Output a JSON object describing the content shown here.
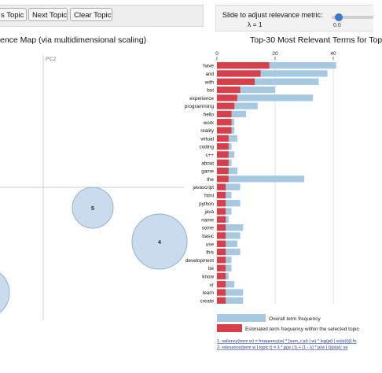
{
  "toolbar": {
    "prev_label": "s Topic",
    "next_label": "Next Topic",
    "clear_label": "Clear Topic"
  },
  "slider": {
    "title": "Slide to adjust relevance metric:",
    "lambda_label": "λ = 1",
    "tick_label": "0.0",
    "value": 1
  },
  "map": {
    "title": "ence Map (via multidimensional scaling)",
    "pc2_label": "PC2",
    "circles": [
      {
        "label": "5",
        "size": "medium"
      },
      {
        "label": "4",
        "size": "large"
      }
    ]
  },
  "bars_panel": {
    "title": "Top-30 Most Relevant Terms for Top",
    "legend_overall": "Overall term frequency",
    "legend_estimated": "Estimated term frequency within the selected topic",
    "footnote_1": "1. saliency(term w) = frequency(w) * [sum_t p(t | w) * log(p(t | w)/p(t))] fo",
    "footnote_2": "2. relevance(term w | topic t) = λ * p(w | t) + (1 - λ) * p(w | t)/p(w); se"
  },
  "colors": {
    "overall": "#a6c8e1",
    "estimated": "#d6404b",
    "circle_fill": "#c9dbed",
    "circle_stroke": "#93b2cf"
  },
  "chart_data": {
    "type": "bar",
    "orientation": "horizontal",
    "title": "Top-30 Most Relevant Terms for Top",
    "xlim": [
      0,
      45
    ],
    "x_ticks": [
      0,
      20,
      40
    ],
    "grid": true,
    "legend": "bottom",
    "categories": [
      "have",
      "and",
      "with",
      "but",
      "experience",
      "programming",
      "hello",
      "work",
      "reality",
      "virtual",
      "coding",
      "c++",
      "about",
      "game",
      "the",
      "javascript",
      "html",
      "python",
      "java",
      "name",
      "some",
      "basic",
      "use",
      "this",
      "development",
      "be",
      "know",
      "vr",
      "learn",
      "create"
    ],
    "series": [
      {
        "name": "Overall term frequency",
        "values": [
          41,
          38,
          35,
          20,
          33,
          14,
          10,
          6,
          6,
          7,
          5,
          6,
          5,
          7,
          30,
          8,
          5,
          8,
          5,
          4,
          9,
          8,
          7,
          8,
          5,
          5,
          4,
          6,
          9,
          9
        ]
      },
      {
        "name": "Estimated term frequency within the selected topic",
        "values": [
          18,
          15,
          13,
          8,
          7,
          6,
          5,
          5,
          5,
          4,
          4,
          4,
          4,
          4,
          4,
          3,
          3,
          3,
          3,
          3,
          3,
          3,
          3,
          3,
          3,
          3,
          3,
          3,
          3,
          3
        ]
      }
    ]
  }
}
